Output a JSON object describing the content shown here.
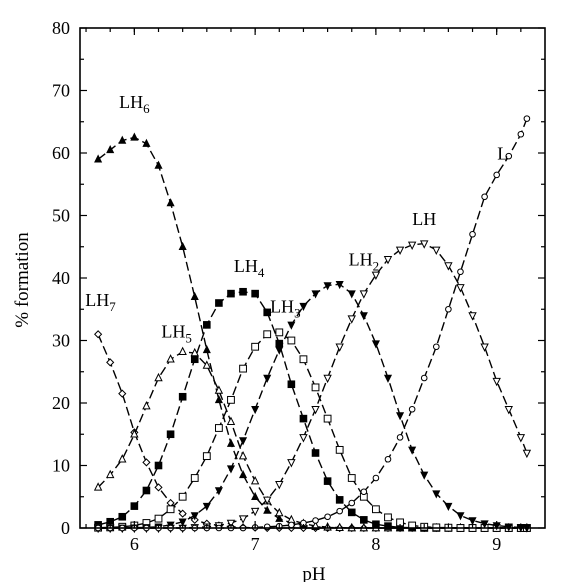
{
  "chart_data": {
    "type": "line",
    "xlabel": "pH",
    "ylabel": "% formation",
    "xlim": [
      5.55,
      9.4
    ],
    "ylim": [
      0,
      80
    ],
    "xticks": [
      6,
      7,
      8,
      9
    ],
    "yticks": [
      0,
      10,
      20,
      30,
      40,
      50,
      60,
      70,
      80
    ],
    "x": [
      5.7,
      5.8,
      5.9,
      6.0,
      6.1,
      6.2,
      6.3,
      6.4,
      6.5,
      6.6,
      6.7,
      6.8,
      6.9,
      7.0,
      7.1,
      7.2,
      7.3,
      7.4,
      7.5,
      7.6,
      7.7,
      7.8,
      7.9,
      8.0,
      8.1,
      8.2,
      8.3,
      8.4,
      8.5,
      8.6,
      8.7,
      8.8,
      8.9,
      9.0,
      9.1,
      9.2,
      9.25
    ],
    "series": [
      {
        "name": "LH7",
        "label_main": "LH",
        "label_sub": "7",
        "marker": "open-diamond",
        "values": [
          31,
          26.5,
          21.5,
          15.3,
          10.5,
          6.5,
          4,
          2.3,
          1.3,
          0.7,
          0.4,
          0.2,
          0.1,
          0.05,
          0,
          0,
          0,
          0,
          0,
          0,
          0,
          0,
          0,
          0,
          0,
          0,
          0,
          0,
          0,
          0,
          0,
          0,
          0,
          0,
          0,
          0,
          0
        ]
      },
      {
        "name": "LH6",
        "label_main": "LH",
        "label_sub": "6",
        "marker": "filled-triangle-up",
        "values": [
          59,
          60.5,
          62,
          62.5,
          61.5,
          58,
          52,
          45,
          37,
          28.5,
          20.5,
          13.5,
          8.5,
          5,
          2.8,
          1.5,
          0.8,
          0.4,
          0.2,
          0.1,
          0.05,
          0,
          0,
          0,
          0,
          0,
          0,
          0,
          0,
          0,
          0,
          0,
          0,
          0,
          0,
          0,
          0
        ]
      },
      {
        "name": "LH5",
        "label_main": "LH",
        "label_sub": "5",
        "marker": "open-triangle-up",
        "values": [
          6.5,
          8.5,
          11,
          15,
          19.5,
          24,
          27,
          28.2,
          28,
          26,
          22,
          17,
          11.5,
          7.5,
          4.3,
          2.4,
          1.3,
          0.7,
          0.3,
          0.15,
          0.05,
          0,
          0,
          0,
          0,
          0,
          0,
          0,
          0,
          0,
          0,
          0,
          0,
          0,
          0,
          0,
          0
        ]
      },
      {
        "name": "LH4",
        "label_main": "LH",
        "label_sub": "4",
        "marker": "filled-square",
        "values": [
          0.5,
          1,
          1.8,
          3.5,
          6,
          10,
          15,
          21,
          27,
          32.5,
          36,
          37.5,
          37.8,
          37.5,
          34.5,
          29.5,
          23,
          17.5,
          12,
          7.5,
          4.5,
          2.5,
          1.3,
          0.6,
          0.3,
          0.1,
          0.05,
          0,
          0,
          0,
          0,
          0,
          0,
          0,
          0,
          0,
          0
        ]
      },
      {
        "name": "LH3",
        "label_main": "LH",
        "label_sub": "3",
        "marker": "open-square",
        "values": [
          0.05,
          0.1,
          0.2,
          0.4,
          0.8,
          1.5,
          3,
          5,
          8,
          11.5,
          16,
          20.5,
          25.5,
          29,
          31,
          31.3,
          30,
          27,
          22.5,
          17.5,
          12.5,
          8,
          5,
          3,
          1.7,
          0.9,
          0.4,
          0.2,
          0.1,
          0.05,
          0,
          0,
          0,
          0,
          0,
          0,
          0
        ]
      },
      {
        "name": "LH2",
        "label_main": "LH",
        "label_sub": "2",
        "marker": "filled-triangle-down",
        "values": [
          0,
          0,
          0,
          0.05,
          0.1,
          0.2,
          0.5,
          1,
          2,
          3.5,
          6,
          9.5,
          14,
          19,
          24,
          28.5,
          32.5,
          35.5,
          37.5,
          38.8,
          39,
          37.5,
          34,
          29.5,
          24,
          18,
          12.5,
          8.5,
          5.5,
          3.5,
          2,
          1.2,
          0.7,
          0.4,
          0.2,
          0.1,
          0.05
        ]
      },
      {
        "name": "LH",
        "label_main": "LH",
        "label_sub": "",
        "marker": "open-triangle-down",
        "values": [
          0,
          0,
          0,
          0,
          0,
          0,
          0,
          0,
          0.1,
          0.2,
          0.4,
          0.8,
          1.5,
          2.7,
          4.5,
          7,
          10.5,
          14.5,
          19,
          24,
          29,
          33.5,
          37.5,
          40.5,
          43,
          44.5,
          45.3,
          45.5,
          44.5,
          42,
          38.5,
          34,
          29,
          23.5,
          19,
          14.5,
          12
        ]
      },
      {
        "name": "L",
        "label_main": "L",
        "label_sub": "",
        "marker": "open-circle",
        "values": [
          0,
          0,
          0,
          0,
          0,
          0,
          0,
          0,
          0,
          0,
          0,
          0,
          0,
          0.1,
          0.2,
          0.3,
          0.5,
          0.8,
          1.2,
          1.8,
          2.7,
          4,
          5.8,
          8,
          11,
          14.5,
          19,
          24,
          29,
          35,
          41,
          47,
          53,
          56.5,
          59.5,
          63,
          65.5
        ]
      }
    ],
    "legend": "inline labels near curves"
  }
}
